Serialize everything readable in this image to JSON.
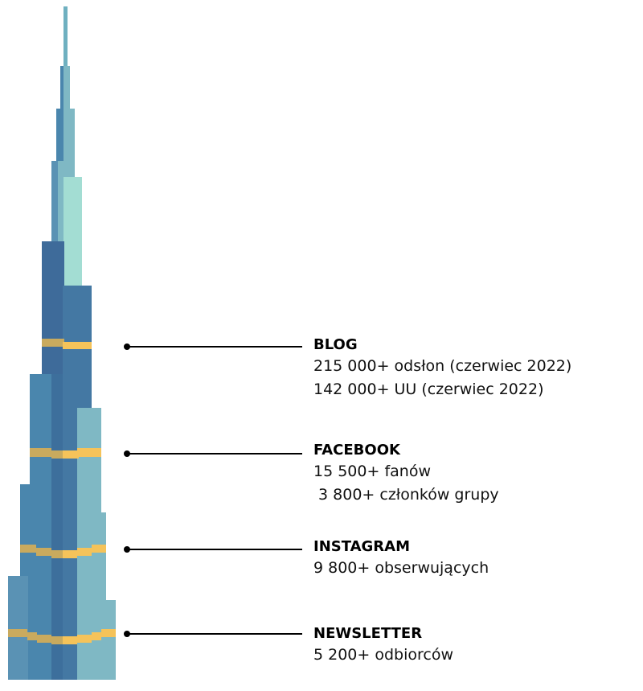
{
  "colors": {
    "tower_dark": "#3e6b9a",
    "tower_mid": "#4a86ad",
    "tower_light": "#7fb8c4",
    "tower_mint": "#a3ddd3",
    "band_gold": "#c9aa5e",
    "band_yellow": "#f5c35a"
  },
  "sections": [
    {
      "title": "BLOG",
      "lines": [
        "215 000+ odsłon (czerwiec 2022)",
        "142 000+ UU (czerwiec 2022)"
      ]
    },
    {
      "title": "FACEBOOK",
      "lines": [
        "15 500+ fanów",
        " 3 800+ członków grupy"
      ]
    },
    {
      "title": "INSTAGRAM",
      "lines": [
        "9 800+ obserwujących"
      ]
    },
    {
      "title": "NEWSLETTER",
      "lines": [
        "5 200+ odbiorców"
      ]
    }
  ]
}
